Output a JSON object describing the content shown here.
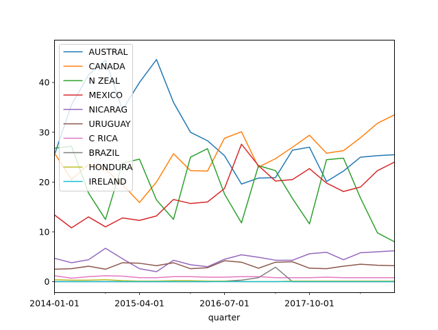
{
  "chart_data": {
    "type": "line",
    "xlabel": "quarter",
    "ylabel": "",
    "title": "",
    "x": [
      "2014Q1",
      "2014Q2",
      "2014Q3",
      "2014Q4",
      "2015Q1",
      "2015Q2",
      "2015Q3",
      "2015Q4",
      "2016Q1",
      "2016Q2",
      "2016Q3",
      "2016Q4",
      "2017Q1",
      "2017Q2",
      "2017Q3",
      "2017Q4",
      "2018Q1",
      "2018Q2",
      "2018Q3",
      "2018Q4",
      "2019Q1"
    ],
    "x_tick_labels": [
      {
        "index": 0,
        "label": "2014-01-01"
      },
      {
        "index": 5,
        "label": "2015-04-01"
      },
      {
        "index": 10,
        "label": "2016-07-01"
      },
      {
        "index": 15,
        "label": "2017-10-01"
      }
    ],
    "x_minor_tick_indices": [
      3,
      8,
      13,
      18
    ],
    "yticks": [
      0,
      10,
      20,
      30,
      40
    ],
    "ylim": [
      -2.2,
      48.5
    ],
    "grid": false,
    "legend_position": "upper-left",
    "series": [
      {
        "name": "AUSTRAL",
        "color": "#1f77b4",
        "values": [
          25.5,
          35.5,
          41.5,
          44.5,
          34.5,
          40.0,
          44.6,
          36.0,
          30.0,
          28.3,
          25.3,
          19.6,
          20.8,
          20.9,
          26.4,
          27.0,
          20.1,
          22.2,
          25.0,
          25.3,
          25.5
        ]
      },
      {
        "name": "CANADA",
        "color": "#ff7f0e",
        "values": [
          25.8,
          20.5,
          23.5,
          22.5,
          19.5,
          15.9,
          20.0,
          25.7,
          22.3,
          22.2,
          28.8,
          30.1,
          23.0,
          24.7,
          27.0,
          29.4,
          25.8,
          26.3,
          28.9,
          31.8,
          33.5
        ]
      },
      {
        "name": "N ZEAL",
        "color": "#2ca02c",
        "values": [
          26.8,
          27.2,
          17.8,
          12.5,
          23.8,
          24.6,
          16.4,
          12.5,
          25.0,
          26.7,
          17.6,
          11.8,
          23.3,
          22.3,
          16.7,
          11.6,
          24.5,
          24.8,
          16.8,
          9.8,
          8.0
        ]
      },
      {
        "name": "MEXICO",
        "color": "#d62728",
        "values": [
          13.4,
          10.8,
          13.0,
          11.0,
          12.8,
          12.3,
          13.2,
          16.5,
          15.7,
          16.0,
          18.7,
          27.6,
          23.3,
          20.2,
          20.5,
          22.7,
          19.8,
          18.1,
          19.0,
          22.3,
          24.0
        ]
      },
      {
        "name": "NICARAG",
        "color": "#9467bd",
        "values": [
          4.7,
          3.8,
          4.4,
          6.7,
          4.6,
          2.6,
          2.0,
          4.3,
          3.4,
          3.0,
          4.5,
          5.4,
          4.9,
          4.3,
          4.3,
          5.6,
          5.9,
          4.4,
          5.8,
          6.0,
          6.2
        ]
      },
      {
        "name": "URUGUAY",
        "color": "#8c564b",
        "values": [
          2.5,
          2.6,
          3.1,
          2.5,
          3.8,
          3.7,
          3.2,
          3.8,
          2.6,
          2.8,
          4.2,
          3.9,
          2.7,
          3.9,
          4.0,
          2.7,
          2.6,
          3.1,
          3.5,
          3.3,
          3.2
        ]
      },
      {
        "name": "C RICA",
        "color": "#e377c2",
        "values": [
          1.2,
          0.7,
          1.0,
          1.2,
          1.1,
          0.8,
          0.8,
          1.0,
          1.0,
          0.9,
          0.9,
          1.0,
          1.0,
          0.8,
          0.8,
          0.8,
          0.9,
          0.8,
          0.8,
          0.8,
          0.8
        ]
      },
      {
        "name": "BRAZIL",
        "color": "#7f7f7f",
        "values": [
          0.0,
          0.0,
          0.0,
          0.0,
          0.0,
          0.0,
          0.0,
          0.0,
          0.0,
          0.0,
          0.1,
          0.3,
          0.8,
          2.9,
          0.0,
          0.0,
          0.0,
          0.0,
          0.0,
          0.0,
          0.0
        ]
      },
      {
        "name": "HONDURA",
        "color": "#bcbd22",
        "values": [
          0.4,
          0.3,
          0.3,
          0.4,
          0.2,
          0.1,
          0.1,
          0.2,
          0.2,
          0.1,
          0.1,
          0.0,
          0.0,
          0.0,
          0.1,
          0.1,
          0.1,
          0.1,
          0.1,
          0.1,
          0.1
        ]
      },
      {
        "name": "IRELAND",
        "color": "#17becf",
        "values": [
          0.0,
          0.0,
          0.0,
          0.0,
          0.0,
          0.0,
          0.0,
          0.0,
          0.0,
          0.0,
          0.0,
          0.0,
          0.0,
          0.0,
          0.0,
          0.0,
          0.0,
          0.0,
          0.0,
          0.0,
          0.0
        ]
      }
    ]
  }
}
